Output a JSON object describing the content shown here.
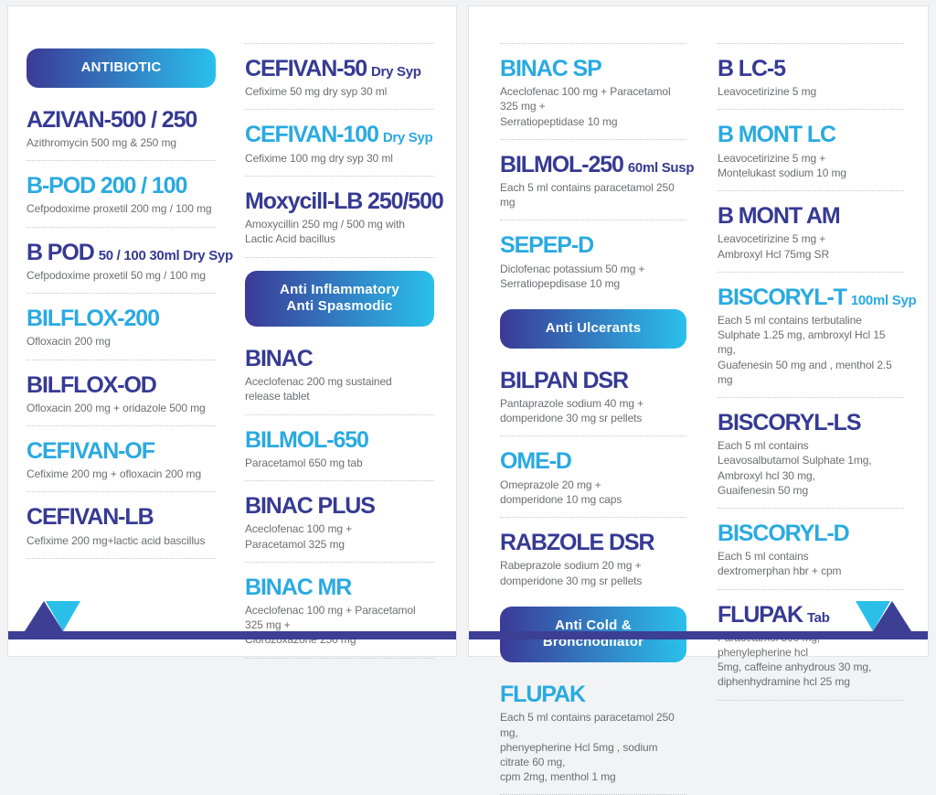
{
  "palette": {
    "heading_dark": "#363a93",
    "heading_cyan": "#29aae1",
    "description_gray": "#6d6e71",
    "pill_gradient_start": "#3b3a97",
    "pill_gradient_end": "#2ac0ec",
    "footer_bar": "#3c3f94",
    "triangle_cyan": "#29bfe8",
    "triangle_dark": "#3c3f94"
  },
  "pages": [
    {
      "columns": [
        {
          "blocks": [
            {
              "type": "category",
              "lines": [
                "ANTIBIOTIC"
              ]
            },
            {
              "type": "product",
              "name": "AZIVAN-500 / 250",
              "suffix": "",
              "tone": "dark",
              "desc": "Azithromycin 500 mg & 250 mg",
              "divider_after": true
            },
            {
              "type": "product",
              "name": "B-POD 200 / 100",
              "suffix": "",
              "tone": "cyan",
              "desc": "Cefpodoxime proxetil 200 mg / 100 mg",
              "divider_after": true
            },
            {
              "type": "product",
              "name": "B POD",
              "suffix": "50 / 100 30ml Dry Syp",
              "tone": "dark",
              "desc": "Cefpodoxime proxetil 50 mg / 100 mg",
              "divider_after": true
            },
            {
              "type": "product",
              "name": "BILFLOX-200",
              "suffix": "",
              "tone": "cyan",
              "desc": "Ofloxacin 200 mg",
              "divider_after": true
            },
            {
              "type": "product",
              "name": "BILFLOX-OD",
              "suffix": "",
              "tone": "dark",
              "desc": "Ofloxacin 200 mg + oridazole 500 mg",
              "divider_after": true
            },
            {
              "type": "product",
              "name": "CEFIVAN-OF",
              "suffix": "",
              "tone": "cyan",
              "desc": "Cefixime 200 mg + ofloxacin 200 mg",
              "divider_after": true
            },
            {
              "type": "product",
              "name": "CEFIVAN-LB",
              "suffix": "",
              "tone": "dark",
              "desc": "Cefixime 200 mg+lactic acid bascillus",
              "divider_after": true
            }
          ]
        },
        {
          "blocks": [
            {
              "type": "divider"
            },
            {
              "type": "product",
              "name": "CEFIVAN-50",
              "suffix": "Dry Syp",
              "tone": "dark",
              "desc": "Cefixime 50 mg dry syp 30 ml",
              "divider_after": true
            },
            {
              "type": "product",
              "name": "CEFIVAN-100",
              "suffix": "Dry Syp",
              "tone": "cyan",
              "desc": "Cefixime 100 mg dry syp 30 ml",
              "divider_after": true
            },
            {
              "type": "product",
              "name": "Moxycill-LB 250/500",
              "suffix": "",
              "tone": "dark",
              "desc": "Amoxycillin 250 mg / 500 mg with\nLactic Acid bacillus",
              "divider_after": true
            },
            {
              "type": "category",
              "lines": [
                "Anti Inflammatory",
                "Anti Spasmodic"
              ]
            },
            {
              "type": "product",
              "name": "BINAC",
              "suffix": "",
              "tone": "dark",
              "desc": "Aceclofenac 200 mg sustained\nrelease tablet",
              "divider_after": true
            },
            {
              "type": "product",
              "name": "BILMOL-650",
              "suffix": "",
              "tone": "cyan",
              "desc": "Paracetamol 650 mg tab",
              "divider_after": true
            },
            {
              "type": "product",
              "name": "BINAC PLUS",
              "suffix": "",
              "tone": "dark",
              "desc": "Aceclofenac 100 mg +\nParacetamol 325 mg",
              "divider_after": true
            },
            {
              "type": "product",
              "name": "BINAC MR",
              "suffix": "",
              "tone": "cyan",
              "desc": "Aceclofenac 100 mg + Paracetamol 325 mg +\nClorozoxazone 250 mg",
              "divider_after": true
            }
          ]
        }
      ]
    },
    {
      "columns": [
        {
          "blocks": [
            {
              "type": "divider"
            },
            {
              "type": "product",
              "name": "BINAC SP",
              "suffix": "",
              "tone": "cyan",
              "desc": "Aceclofenac 100 mg + Paracetamol 325 mg +\nSerratiopeptidase 10 mg",
              "divider_after": true
            },
            {
              "type": "product",
              "name": "BILMOL-250",
              "suffix": "60ml Susp",
              "tone": "dark",
              "desc": "Each 5 ml contains paracetamol 250 mg",
              "divider_after": true
            },
            {
              "type": "product",
              "name": "SEPEP-D",
              "suffix": "",
              "tone": "cyan",
              "desc": "Diclofenac potassium 50 mg +\nSerratiopepdisase 10 mg",
              "divider_after": false
            },
            {
              "type": "category",
              "lines": [
                "Anti Ulcerants"
              ]
            },
            {
              "type": "product",
              "name": "BILPAN DSR",
              "suffix": "",
              "tone": "dark",
              "desc": "Pantaprazole sodium 40 mg +\ndomperidone 30 mg sr pellets",
              "divider_after": true
            },
            {
              "type": "product",
              "name": "OME-D",
              "suffix": "",
              "tone": "cyan",
              "desc": "Omeprazole 20 mg +\ndomperidone 10 mg caps",
              "divider_after": true
            },
            {
              "type": "product",
              "name": "RABZOLE DSR",
              "suffix": "",
              "tone": "dark",
              "desc": "Rabeprazole sodium 20 mg +\ndomperidone 30 mg sr pellets",
              "divider_after": false
            },
            {
              "type": "category",
              "lines": [
                "Anti Cold & Bronchodilator"
              ]
            },
            {
              "type": "product",
              "name": "FLUPAK",
              "suffix": "",
              "tone": "cyan",
              "desc": "Each 5 ml contains paracetamol 250 mg,\nphenyepherine Hcl 5mg , sodium citrate 60 mg,\ncpm 2mg, menthol 1 mg",
              "divider_after": true
            }
          ]
        },
        {
          "blocks": [
            {
              "type": "divider"
            },
            {
              "type": "product",
              "name": "B LC-5",
              "suffix": "",
              "tone": "dark",
              "desc": "Leavocetirizine 5 mg",
              "divider_after": true
            },
            {
              "type": "product",
              "name": "B MONT LC",
              "suffix": "",
              "tone": "cyan",
              "desc": "Leavocetirizine 5 mg +\nMontelukast sodium 10 mg",
              "divider_after": true
            },
            {
              "type": "product",
              "name": "B MONT AM",
              "suffix": "",
              "tone": "dark",
              "desc": "Leavocetirizine 5 mg +\nAmbroxyl Hcl 75mg  SR",
              "divider_after": true
            },
            {
              "type": "product",
              "name": "BISCORYL-T",
              "suffix": "100ml Syp",
              "tone": "cyan",
              "desc": "Each 5 ml contains terbutaline\nSulphate 1.25 mg, ambroxyl Hcl 15 mg,\nGuafenesin 50 mg and , menthol 2.5 mg",
              "divider_after": true
            },
            {
              "type": "product",
              "name": "BISCORYL-LS",
              "suffix": "",
              "tone": "dark",
              "desc": "Each 5 ml contains\nLeavosalbutamol Sulphate 1mg,\nAmbroxyl hcl 30 mg,\nGuaifenesin 50 mg",
              "divider_after": true
            },
            {
              "type": "product",
              "name": "BISCORYL-D",
              "suffix": "",
              "tone": "cyan",
              "desc": "Each 5 ml contains\ndextromerphan hbr + cpm",
              "divider_after": true
            },
            {
              "type": "product",
              "name": "FLUPAK",
              "suffix": "Tab",
              "tone": "dark",
              "desc": "Paracetamol 500 mg,\nphenylepherine hcl\n5mg, caffeine anhydrous 30 mg,\ndiphenhydramine hcl 25 mg",
              "divider_after": true
            }
          ]
        }
      ]
    }
  ]
}
